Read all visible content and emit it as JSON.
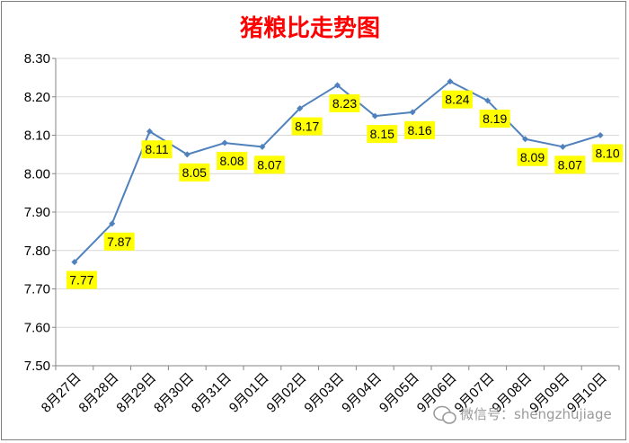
{
  "chart_data": {
    "type": "line",
    "title": "猪粮比走势图",
    "categories": [
      "8月27日",
      "8月28日",
      "8月29日",
      "8月30日",
      "8月31日",
      "9月01日",
      "9月02日",
      "9月03日",
      "9月04日",
      "9月05日",
      "9月06日",
      "9月07日",
      "9月08日",
      "9月09日",
      "9月10日"
    ],
    "values": [
      7.77,
      7.87,
      8.11,
      8.05,
      8.08,
      8.07,
      8.17,
      8.23,
      8.15,
      8.16,
      8.24,
      8.19,
      8.09,
      8.07,
      8.1
    ],
    "data_labels": [
      "7.77",
      "7.87",
      "8.11",
      "8.05",
      "8.08",
      "8.07",
      "8.17",
      "8.23",
      "8.15",
      "8.16",
      "8.24",
      "8.19",
      "8.09",
      "8.07",
      "8.10"
    ],
    "ylim": [
      7.5,
      8.3
    ],
    "yticks": [
      "7.50",
      "7.60",
      "7.70",
      "7.80",
      "7.90",
      "8.00",
      "8.10",
      "8.20",
      "8.30"
    ],
    "grid": true,
    "legend": "none",
    "colors": {
      "line": "#4f81bd",
      "label_bg": "#ffff00",
      "title": "#ff0000",
      "grid": "#d9d9d9"
    }
  },
  "watermark": {
    "icon": "wechat-icon",
    "text": "微信号：shengzhujiage"
  }
}
